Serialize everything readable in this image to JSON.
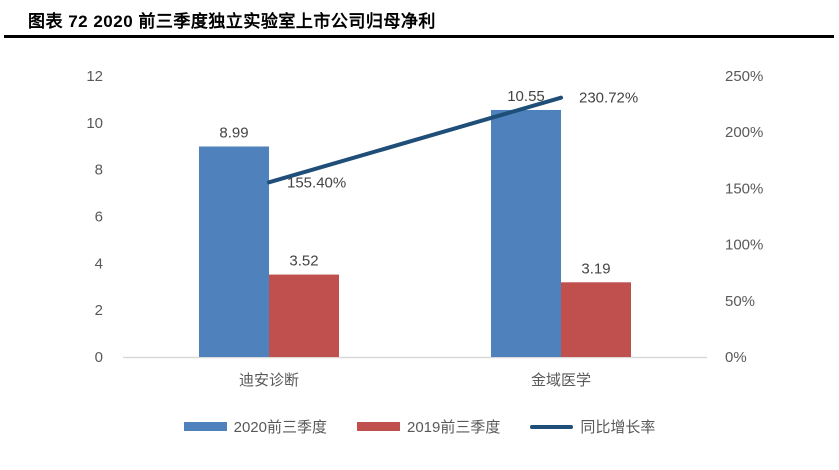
{
  "header": {
    "title": "图表  72 2020 前三季度独立实验室上市公司归母净利",
    "rule_color": "#000000"
  },
  "chart_data": {
    "type": "bar",
    "subtype": "bar-line-combo",
    "categories": [
      "迪安诊断",
      "金域医学"
    ],
    "series": [
      {
        "name": "2020前三季度",
        "type": "bar",
        "axis": "left",
        "color": "#4F81BD",
        "values": [
          8.99,
          10.55
        ],
        "labels": [
          "8.99",
          "10.55"
        ]
      },
      {
        "name": "2019前三季度",
        "type": "bar",
        "axis": "left",
        "color": "#C0504D",
        "values": [
          3.52,
          3.19
        ],
        "labels": [
          "3.52",
          "3.19"
        ]
      },
      {
        "name": "同比增长率",
        "type": "line",
        "axis": "right",
        "color": "#1F4E79",
        "values": [
          155.4,
          230.72
        ],
        "labels": [
          "155.40%",
          "230.72%"
        ]
      }
    ],
    "left_axis": {
      "min": 0,
      "max": 12,
      "ticks": [
        0,
        2,
        4,
        6,
        8,
        10,
        12
      ],
      "labels": [
        "0",
        "2",
        "4",
        "6",
        "8",
        "10",
        "12"
      ]
    },
    "right_axis": {
      "min": 0,
      "max": 250,
      "ticks": [
        0,
        50,
        100,
        150,
        200,
        250
      ],
      "labels": [
        "0%",
        "50%",
        "100%",
        "150%",
        "200%",
        "250%"
      ]
    },
    "legend_position": "bottom",
    "grid": false,
    "colors": {
      "axis_text": "#595959",
      "category_text": "#595959",
      "data_label": "#444444",
      "axis_line": "#D9D9D9"
    }
  }
}
